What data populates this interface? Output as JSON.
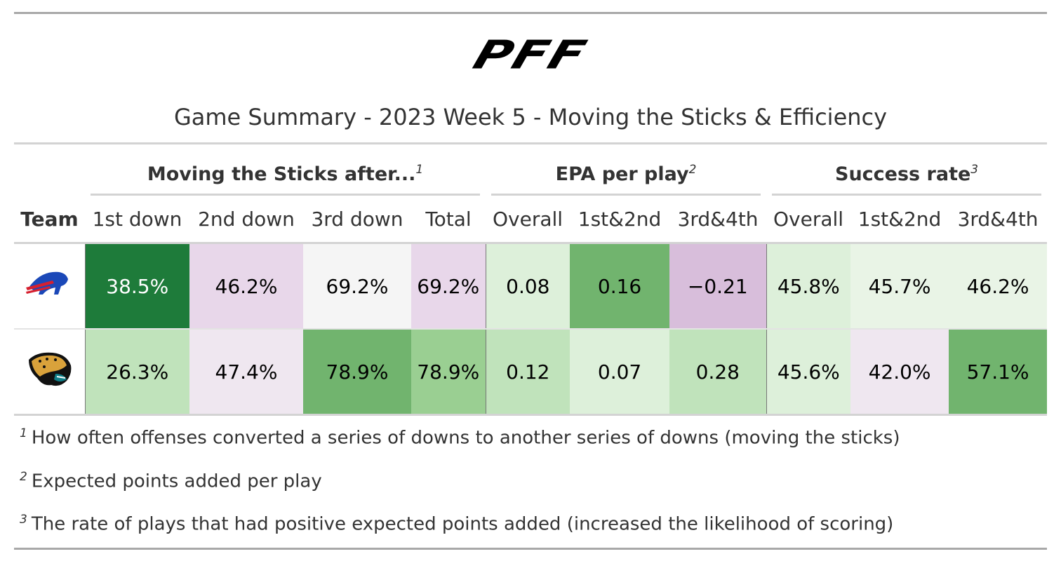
{
  "logo": "PFF",
  "title": "Game Summary - 2023 Week 5 - Moving the Sticks & Efficiency",
  "spanners": [
    {
      "label": "Moving the Sticks after...",
      "note": "1"
    },
    {
      "label": "EPA per play",
      "note": "2"
    },
    {
      "label": "Success rate",
      "note": "3"
    }
  ],
  "columns": [
    "Team",
    "1st down",
    "2nd down",
    "3rd down",
    "Total",
    "Overall",
    "1st&2nd",
    "3rd&4th",
    "Overall",
    "1st&2nd",
    "3rd&4th"
  ],
  "rows": [
    {
      "cells": [
        {
          "text": "38.5%",
          "color": "#1e7b3a",
          "text_color": "#ffffff"
        },
        {
          "text": "46.2%",
          "color": "#e8d7ea"
        },
        {
          "text": "69.2%",
          "color": "#f5f5f5"
        },
        {
          "text": "69.2%",
          "color": "#e8d7ea"
        },
        {
          "text": "0.08",
          "color": "#ddf0da"
        },
        {
          "text": "0.16",
          "color": "#71b46e"
        },
        {
          "text": "−0.21",
          "color": "#d8bedb"
        },
        {
          "text": "45.8%",
          "color": "#ddf0da"
        },
        {
          "text": "45.7%",
          "color": "#e9f4e6"
        },
        {
          "text": "46.2%",
          "color": "#e9f4e6"
        }
      ]
    },
    {
      "cells": [
        {
          "text": "26.3%",
          "color": "#c0e3bb"
        },
        {
          "text": "47.4%",
          "color": "#efe7f0"
        },
        {
          "text": "78.9%",
          "color": "#71b46e"
        },
        {
          "text": "78.9%",
          "color": "#9acf92"
        },
        {
          "text": "0.12",
          "color": "#c0e3bb"
        },
        {
          "text": "0.07",
          "color": "#ddf0da"
        },
        {
          "text": "0.28",
          "color": "#c0e3bb"
        },
        {
          "text": "45.6%",
          "color": "#ddf0da"
        },
        {
          "text": "42.0%",
          "color": "#efe7f0"
        },
        {
          "text": "57.1%",
          "color": "#71b46e"
        }
      ]
    }
  ],
  "footnotes": [
    {
      "mark": "1",
      "text": "How often offenses converted a series of downs to another series of downs (moving the sticks)"
    },
    {
      "mark": "2",
      "text": "Expected points added per play"
    },
    {
      "mark": "3",
      "text": "The rate of plays that had positive expected points added (increased the likelihood of scoring)"
    }
  ]
}
